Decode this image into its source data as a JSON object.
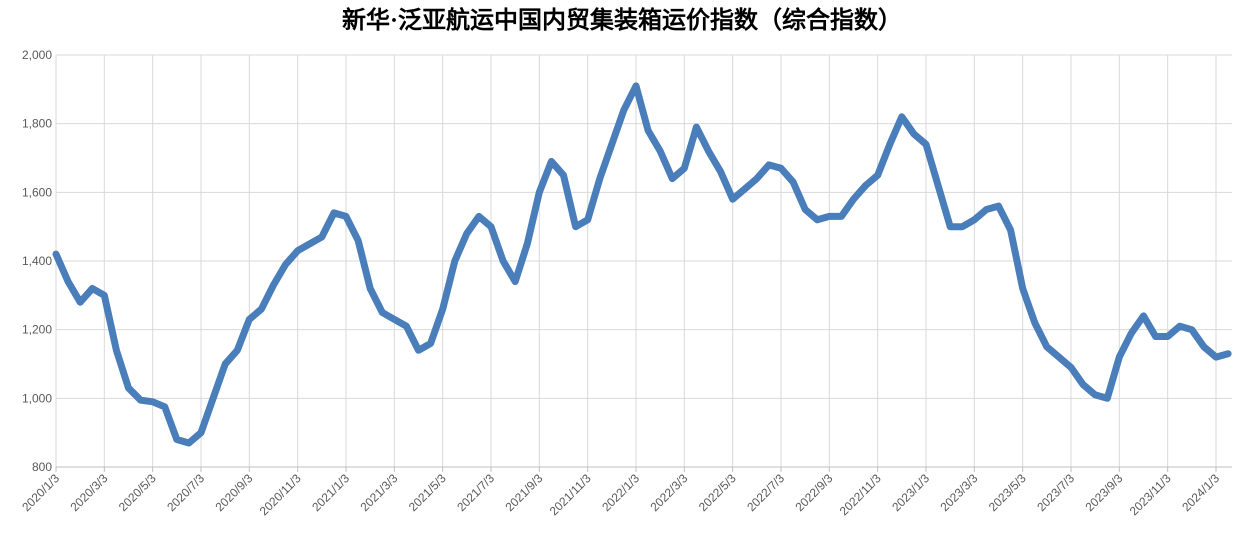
{
  "chart_data": {
    "type": "line",
    "title": "新华·泛亚航运中国内贸集装箱运价指数（综合指数）",
    "categories": [
      "2020/1/3",
      null,
      null,
      null,
      "2020/3/3",
      null,
      null,
      null,
      "2020/5/3",
      null,
      null,
      null,
      "2020/7/3",
      null,
      null,
      null,
      "2020/9/3",
      null,
      null,
      null,
      "2020/11/3",
      null,
      null,
      null,
      "2021/1/3",
      null,
      null,
      null,
      "2021/3/3",
      null,
      null,
      null,
      "2021/5/3",
      null,
      null,
      null,
      "2021/7/3",
      null,
      null,
      null,
      "2021/9/3",
      null,
      null,
      null,
      "2021/11/3",
      null,
      null,
      null,
      "2022/1/3",
      null,
      null,
      null,
      "2022/3/3",
      null,
      null,
      null,
      "2022/5/3",
      null,
      null,
      null,
      "2022/7/3",
      null,
      null,
      null,
      "2022/9/3",
      null,
      null,
      null,
      "2022/11/3",
      null,
      null,
      null,
      "2023/1/3",
      null,
      null,
      null,
      "2023/3/3",
      null,
      null,
      null,
      "2023/5/3",
      null,
      null,
      null,
      "2023/7/3",
      null,
      null,
      null,
      "2023/9/3",
      null,
      null,
      null,
      "2023/11/3",
      null,
      null,
      null,
      "2024/1/3",
      null
    ],
    "values": [
      1420,
      1340,
      1280,
      1320,
      1300,
      1140,
      1030,
      995,
      990,
      975,
      880,
      870,
      900,
      1000,
      1100,
      1140,
      1230,
      1260,
      1330,
      1390,
      1430,
      1450,
      1470,
      1540,
      1530,
      1460,
      1320,
      1250,
      1230,
      1210,
      1140,
      1160,
      1260,
      1400,
      1480,
      1530,
      1500,
      1400,
      1340,
      1450,
      1600,
      1690,
      1650,
      1500,
      1520,
      1640,
      1740,
      1840,
      1910,
      1780,
      1720,
      1640,
      1670,
      1790,
      1720,
      1660,
      1580,
      1610,
      1640,
      1680,
      1670,
      1630,
      1550,
      1520,
      1530,
      1530,
      1580,
      1620,
      1650,
      1740,
      1820,
      1770,
      1740,
      1620,
      1500,
      1500,
      1520,
      1550,
      1560,
      1490,
      1320,
      1220,
      1150,
      1120,
      1090,
      1040,
      1010,
      1000,
      1120,
      1190,
      1240,
      1180,
      1180,
      1210,
      1200,
      1150,
      1120,
      1130
    ],
    "color": "#4a7ebb",
    "ylim": [
      800,
      2000
    ],
    "yticks": [
      800,
      {
        "value": 1000,
        "label": "1,000"
      },
      {
        "value": 1200,
        "label": "1,200"
      },
      {
        "value": 1400,
        "label": "1,400"
      },
      {
        "value": 1600,
        "label": "1,600"
      },
      {
        "value": 1800,
        "label": "1,800"
      },
      {
        "value": 2000,
        "label": "2,000"
      }
    ],
    "grid": true
  }
}
